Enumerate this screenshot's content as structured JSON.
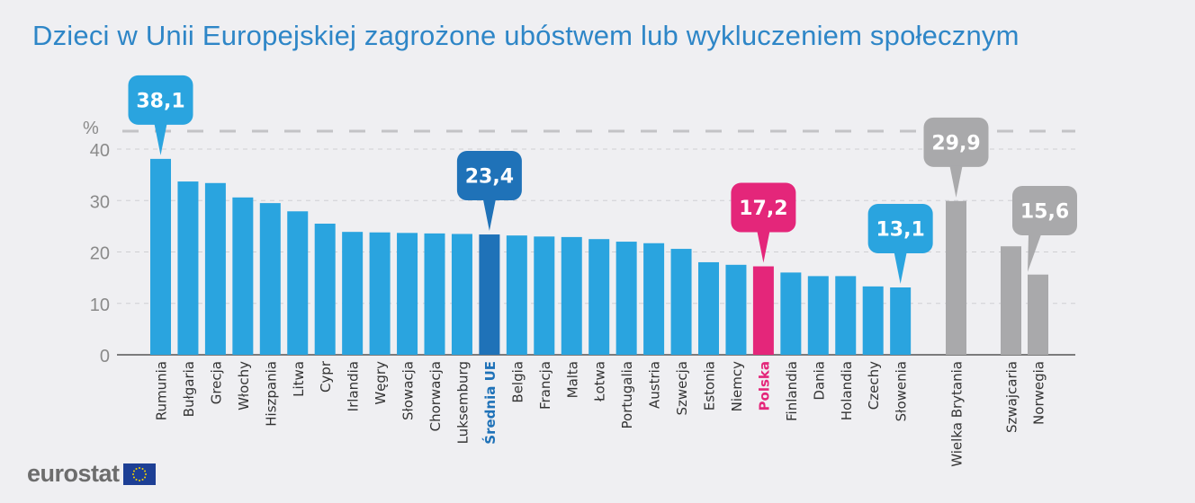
{
  "chart_data": {
    "type": "bar",
    "title": "Dzieci w Unii Europejskiej zagrożone ubóstwem lub wykluczeniem społecznym",
    "ylabel": "%",
    "ylim": [
      0,
      40
    ],
    "yticks": [
      0,
      10,
      20,
      30,
      40
    ],
    "grid": true,
    "categories": [
      "Rumunia",
      "Bułgaria",
      "Grecja",
      "Włochy",
      "Hiszpania",
      "Litwa",
      "Cypr",
      "Irlandia",
      "Węgry",
      "Słowacja",
      "Chorwacja",
      "Luksemburg",
      "Średnia UE",
      "Belgia",
      "Francja",
      "Malta",
      "Łotwa",
      "Portugalia",
      "Austria",
      "Szwecja",
      "Estonia",
      "Niemcy",
      "Polska",
      "Finlandia",
      "Dania",
      "Holandia",
      "Czechy",
      "Słowenia",
      "Wielka Brytania",
      "Szwajcaria",
      "Norwegia"
    ],
    "values": [
      38.1,
      33.7,
      33.4,
      30.6,
      29.5,
      27.9,
      25.5,
      23.9,
      23.8,
      23.7,
      23.6,
      23.5,
      23.4,
      23.2,
      23.0,
      22.9,
      22.5,
      22.0,
      21.7,
      20.6,
      18.0,
      17.5,
      17.2,
      16.0,
      15.3,
      15.3,
      13.3,
      13.1,
      29.9,
      21.1,
      15.6
    ],
    "groups": [
      "eu",
      "eu",
      "eu",
      "eu",
      "eu",
      "eu",
      "eu",
      "eu",
      "eu",
      "eu",
      "eu",
      "eu",
      "average",
      "eu",
      "eu",
      "eu",
      "eu",
      "eu",
      "eu",
      "eu",
      "eu",
      "eu",
      "highlight",
      "eu",
      "eu",
      "eu",
      "eu",
      "eu",
      "non-eu",
      "non-eu",
      "non-eu"
    ],
    "callouts": [
      {
        "category": "Rumunia",
        "label": "38,1"
      },
      {
        "category": "Średnia UE",
        "label": "23,4"
      },
      {
        "category": "Polska",
        "label": "17,2"
      },
      {
        "category": "Słowenia",
        "label": "13,1"
      },
      {
        "category": "Wielka Brytania",
        "label": "29,9"
      },
      {
        "category": "Norwegia",
        "label": "15,6"
      }
    ]
  },
  "colors": {
    "eu": "#2aa4df",
    "average": "#1f72b8",
    "highlight": "#e4267a",
    "non-eu": "#a9a9ab",
    "title": "#2e86c7"
  },
  "logo": {
    "text": "eurostat"
  }
}
